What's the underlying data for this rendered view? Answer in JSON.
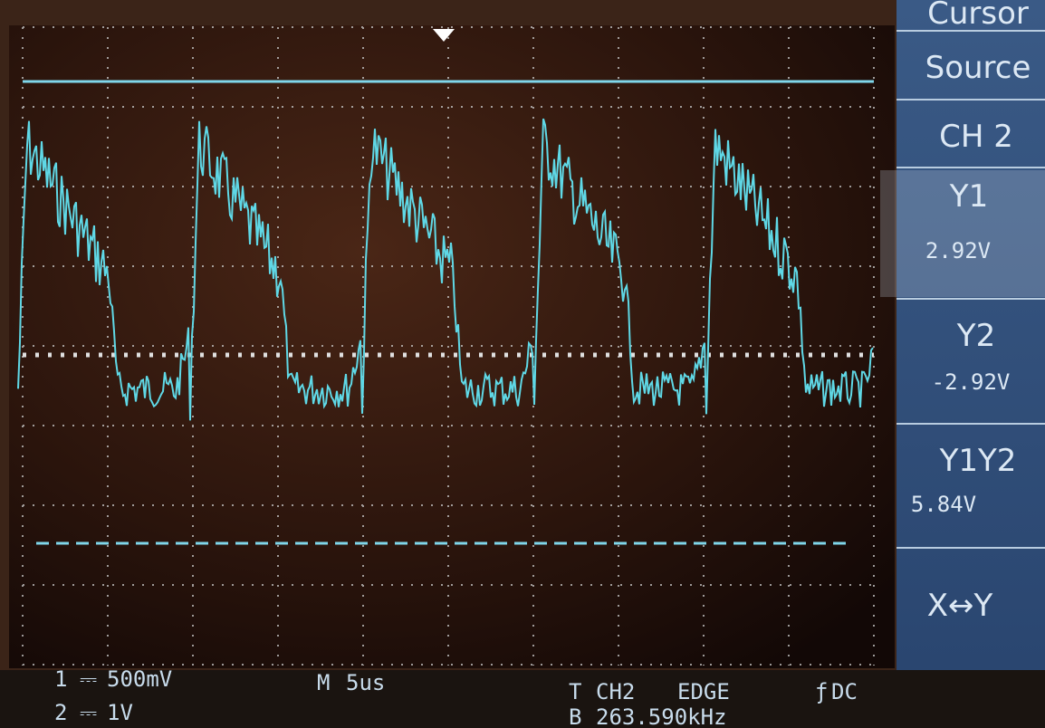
{
  "menu": {
    "title": "Cursor",
    "items": [
      {
        "label": "Source"
      },
      {
        "label": "CH 2"
      },
      {
        "label": "Y1",
        "value": "2.92V"
      },
      {
        "label": "Y2",
        "value": "-2.92V"
      },
      {
        "label": "Y1Y2",
        "value": "5.84V"
      },
      {
        "label": "X↔Y"
      }
    ]
  },
  "status": {
    "ch1": {
      "number": "1",
      "coupling": "⎓",
      "scale": "500mV"
    },
    "ch2": {
      "number": "2",
      "coupling": "⎓",
      "scale": "1V"
    },
    "timebase": {
      "tag": "M",
      "scale": "5us"
    },
    "trigger": {
      "tag": "T",
      "source": "CH2",
      "mode": "EDGE",
      "slope": "ƒ",
      "coupling": "DC"
    },
    "frequency": {
      "tag": "B",
      "value": "263.590kHz"
    }
  }
}
